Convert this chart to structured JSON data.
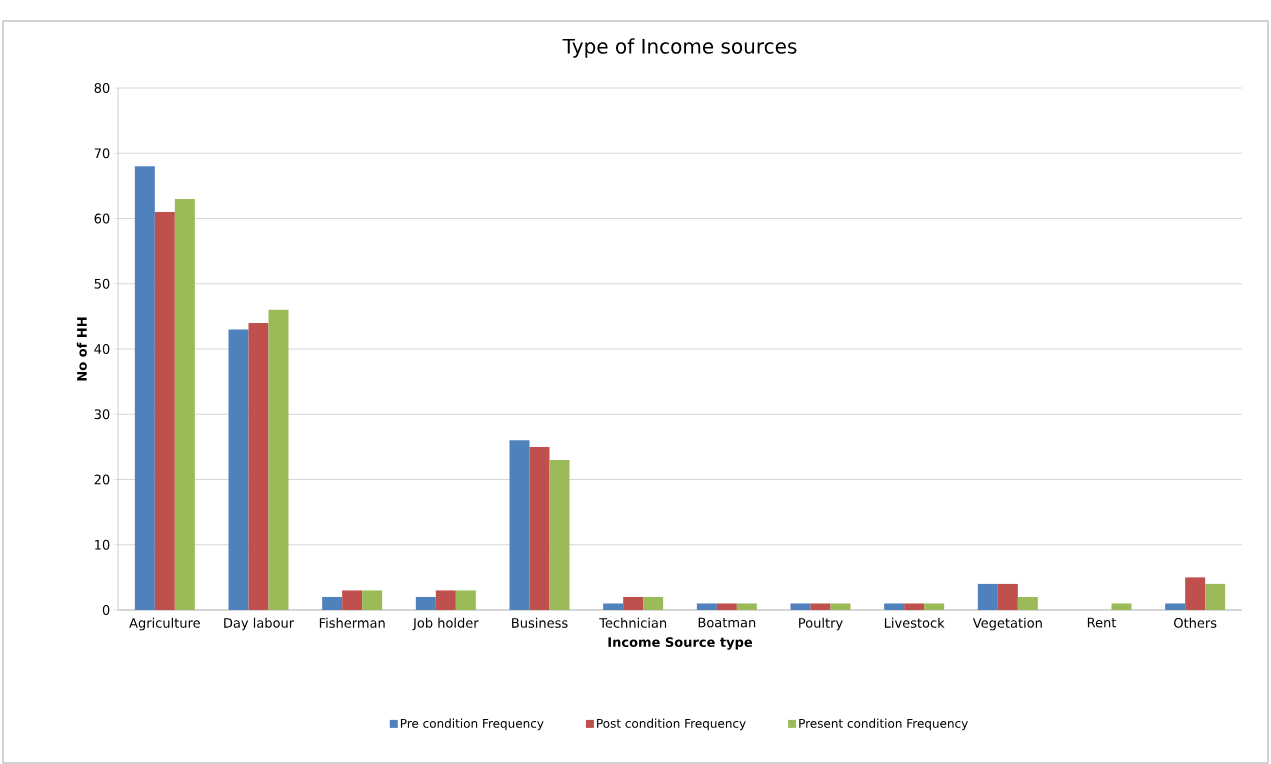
{
  "chart_data": {
    "type": "bar",
    "title": "Type of Income sources",
    "xlabel": "Income Source type",
    "ylabel": "No of HH",
    "categories": [
      "Agriculture",
      "Day labour",
      "Fisherman",
      "Job holder",
      "Business",
      "Technician",
      "Boatman",
      "Poultry",
      "Livestock",
      "Vegetation",
      "Rent",
      "Others"
    ],
    "series": [
      {
        "name": "Pre condition Frequency",
        "color": "#4f81bd",
        "values": [
          68,
          43,
          2,
          2,
          26,
          1,
          1,
          1,
          1,
          4,
          0,
          1
        ]
      },
      {
        "name": "Post condition Frequency",
        "color": "#c0504d",
        "values": [
          61,
          44,
          3,
          3,
          25,
          2,
          1,
          1,
          1,
          4,
          0,
          5
        ]
      },
      {
        "name": "Present condition Frequency",
        "color": "#9bbb59",
        "values": [
          63,
          46,
          3,
          3,
          23,
          2,
          1,
          1,
          1,
          2,
          1,
          4
        ]
      }
    ],
    "ylim": [
      0,
      80
    ],
    "yticks": [
      0,
      10,
      20,
      30,
      40,
      50,
      60,
      70,
      80
    ],
    "grid": "y",
    "legend": "bottom"
  }
}
